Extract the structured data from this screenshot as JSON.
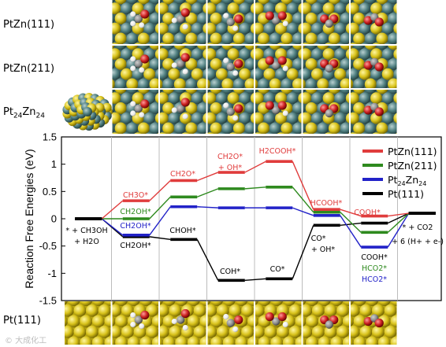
{
  "rows": [
    {
      "label": "PtZn(111)"
    },
    {
      "label": "PtZn(211)"
    },
    {
      "label_main": "Pt",
      "label_sub1": "24",
      "label_mid": "Zn",
      "label_sub2": "24"
    },
    {
      "label": "Pt(111)"
    }
  ],
  "colors": {
    "PtZn111": "#e03c3c",
    "PtZn211": "#2e8a1e",
    "Pt24Zn24": "#2222c8",
    "Pt111": "#000000",
    "Zn": "#4f7f80",
    "Pt": "#d8c21a",
    "O": "#cc2222",
    "H": "#f2f2f2",
    "C": "#8a8a8a"
  },
  "watermark": "© 大成化工",
  "chart_data": {
    "type": "line",
    "ylabel": "Reaction Free Energies (eV)",
    "ylim": [
      -1.5,
      1.5
    ],
    "yticks": [
      1.5,
      1,
      0.5,
      0,
      -0.5,
      -1,
      -1.5
    ],
    "ytick_labels": [
      "1.5",
      "1",
      "0.5",
      "0",
      "-0.5",
      "-1",
      "-1.5"
    ],
    "states": 8,
    "series": [
      {
        "name": "PtZn(111)",
        "name_html": false,
        "key": "PtZn111",
        "values": [
          0,
          0.33,
          0.7,
          0.85,
          1.05,
          0.17,
          0.05,
          0.1
        ]
      },
      {
        "name": "PtZn(211)",
        "key": "PtZn211",
        "values": [
          0,
          0.0,
          0.4,
          0.55,
          0.58,
          0.12,
          -0.25,
          0.1
        ]
      },
      {
        "name": "Pt24Zn24",
        "key": "Pt24Zn24",
        "values": [
          0,
          -0.3,
          0.22,
          0.2,
          0.2,
          0.06,
          -0.52,
          0.1
        ]
      },
      {
        "name": "Pt(111)",
        "key": "Pt111",
        "values": [
          0,
          -0.33,
          -0.38,
          -1.13,
          -1.1,
          -0.12,
          -0.08,
          0.1
        ]
      }
    ],
    "legend": {
      "placement": "top-right",
      "entries": [
        {
          "text": "PtZn(111)",
          "key": "PtZn111"
        },
        {
          "text": "PtZn(211)",
          "key": "PtZn211"
        },
        {
          "text_main": "Pt",
          "sub1": "24",
          "text_mid": "Zn",
          "sub2": "24",
          "key": "Pt24Zn24"
        },
        {
          "text": "Pt(111)",
          "key": "Pt111"
        }
      ]
    },
    "annotations": [
      {
        "id": "s0-a",
        "text": "* + CH3OH",
        "color": "#000000"
      },
      {
        "id": "s0-b",
        "text": "+ H2O",
        "color": "#000000"
      },
      {
        "id": "s1-red",
        "text": "CH3O*",
        "color": "#e03c3c"
      },
      {
        "id": "s1-green",
        "text": "CH2OH*",
        "color": "#2e8a1e"
      },
      {
        "id": "s1-blue",
        "text": "CH2OH*",
        "color": "#2222c8"
      },
      {
        "id": "s1-black",
        "text": "CH2OH*",
        "color": "#000000"
      },
      {
        "id": "s2-red",
        "text": "CH2O*",
        "color": "#e03c3c"
      },
      {
        "id": "s2-black",
        "text": "CHOH*",
        "color": "#000000"
      },
      {
        "id": "s3-red-a",
        "text": "CH2O*",
        "color": "#e03c3c"
      },
      {
        "id": "s3-red-b",
        "text": "+ OH*",
        "color": "#e03c3c"
      },
      {
        "id": "s3-black",
        "text": "COH*",
        "color": "#000000"
      },
      {
        "id": "s4-red",
        "text": "H2COOH*",
        "color": "#e03c3c"
      },
      {
        "id": "s4-black",
        "text": "CO*",
        "color": "#000000"
      },
      {
        "id": "s5-red",
        "text": "HCOOH*",
        "color": "#e03c3c"
      },
      {
        "id": "s5-black-a",
        "text": "CO*",
        "color": "#000000"
      },
      {
        "id": "s5-black-b",
        "text": "+ OH*",
        "color": "#000000"
      },
      {
        "id": "s6-red",
        "text": "COOH*",
        "color": "#e03c3c"
      },
      {
        "id": "s6-black",
        "text": "COOH*",
        "color": "#000000"
      },
      {
        "id": "s6-green",
        "text": "HCO2*",
        "color": "#2e8a1e"
      },
      {
        "id": "s6-blue",
        "text": "HCO2*",
        "color": "#2222c8"
      },
      {
        "id": "s7-a",
        "text": "* + CO2",
        "color": "#000000"
      },
      {
        "id": "s7-b",
        "text": "+ 6 (H+ + e-)",
        "color": "#000000"
      }
    ],
    "grid": false
  }
}
